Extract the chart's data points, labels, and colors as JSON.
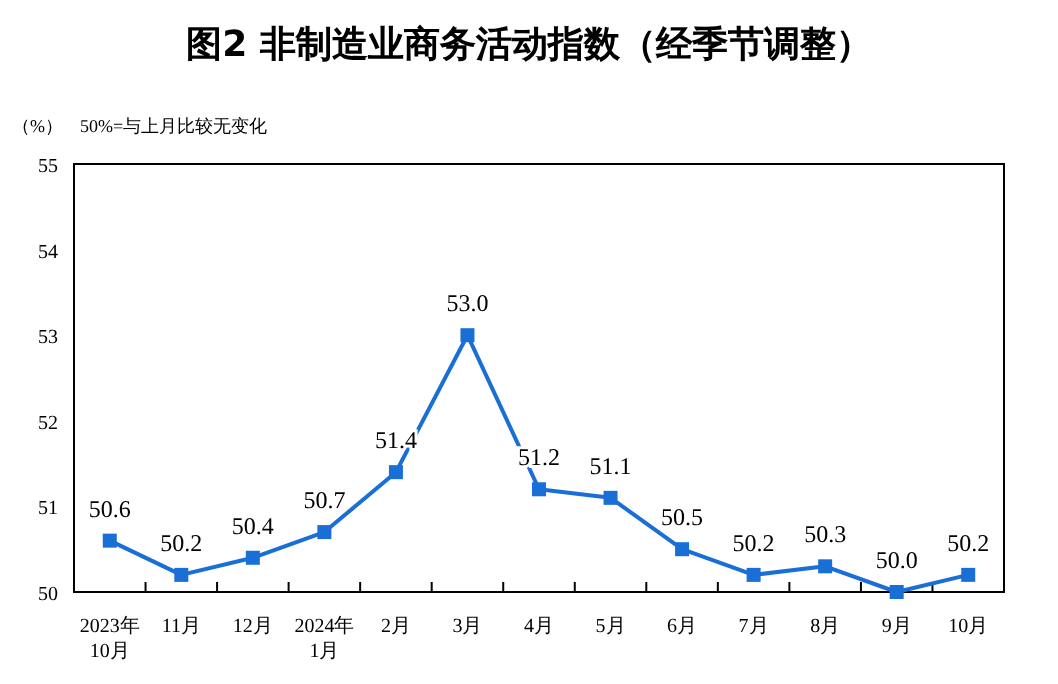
{
  "chart_data": {
    "type": "line",
    "title": "图2  非制造业商务活动指数（经季节调整）",
    "ylabel": "（%）",
    "annotations": [
      "50%=与上月比较无变化"
    ],
    "categories": [
      "2023年\n10月",
      "11月",
      "12月",
      "2024年\n1月",
      "2月",
      "3月",
      "4月",
      "5月",
      "6月",
      "7月",
      "8月",
      "9月",
      "10月"
    ],
    "series": [
      {
        "color": "#1a6fd6",
        "values": [
          50.6,
          50.2,
          50.4,
          50.7,
          51.4,
          53.0,
          51.2,
          51.1,
          50.5,
          50.2,
          50.3,
          50.0,
          50.2
        ],
        "value_labels": [
          "50.6",
          "50.2",
          "50.4",
          "50.7",
          "51.4",
          "53.0",
          "51.2",
          "51.1",
          "50.5",
          "50.2",
          "50.3",
          "50.0",
          "50.2"
        ]
      }
    ],
    "ylim": [
      50,
      55
    ],
    "yticks": [
      50,
      51,
      52,
      53,
      54,
      55
    ],
    "grid": false,
    "marker": "square",
    "line_style": "solid"
  }
}
